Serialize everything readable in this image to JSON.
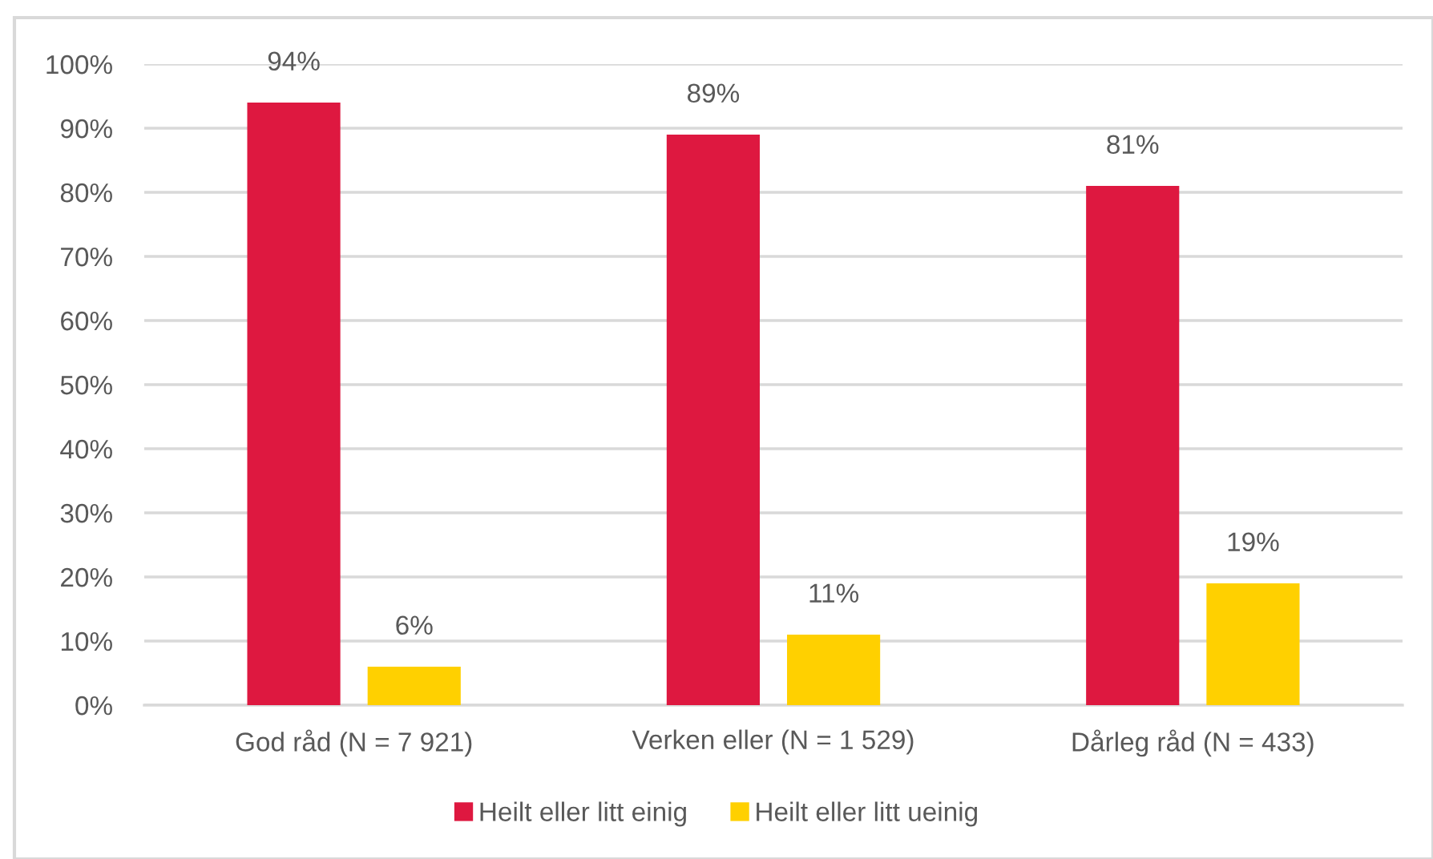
{
  "chart_data": {
    "type": "bar",
    "categories": [
      "God råd (N = 7 921)",
      "Verken eller (N = 1 529)",
      "Dårleg råd (N = 433)"
    ],
    "series": [
      {
        "name": "Heilt eller litt einig",
        "color": "#de1840",
        "values": [
          94,
          89,
          81
        ],
        "value_labels": [
          "94%",
          "89%",
          "81%"
        ]
      },
      {
        "name": "Heilt eller litt ueinig",
        "color": "#ffd000",
        "values": [
          6,
          11,
          19
        ],
        "value_labels": [
          "6%",
          "11%",
          "19%"
        ]
      }
    ],
    "ylim": [
      0,
      100
    ],
    "yticks": [
      {
        "value": 0,
        "label": "0%"
      },
      {
        "value": 10,
        "label": "10%"
      },
      {
        "value": 20,
        "label": "20%"
      },
      {
        "value": 30,
        "label": "30%"
      },
      {
        "value": 40,
        "label": "40%"
      },
      {
        "value": 50,
        "label": "50%"
      },
      {
        "value": 60,
        "label": "60%"
      },
      {
        "value": 70,
        "label": "70%"
      },
      {
        "value": 80,
        "label": "80%"
      },
      {
        "value": 90,
        "label": "90%"
      },
      {
        "value": 100,
        "label": "100%"
      }
    ],
    "grid": "y",
    "legend": "bottom"
  }
}
